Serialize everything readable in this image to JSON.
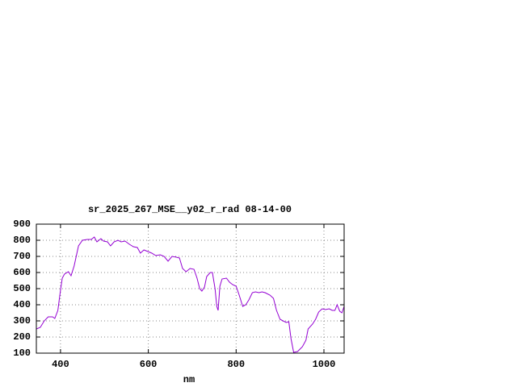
{
  "chart_data": {
    "type": "line",
    "title": "sr_2025_267_MSE__y02_r_rad 08-14-00",
    "xlabel": "nm",
    "x": [
      345,
      354,
      363,
      372,
      382,
      387,
      394,
      400,
      404,
      409,
      418,
      424,
      431,
      441,
      450,
      461,
      470,
      477,
      483,
      492,
      498,
      507,
      514,
      522,
      531,
      538,
      547,
      557,
      566,
      575,
      582,
      590,
      599,
      608,
      617,
      627,
      636,
      645,
      654,
      664,
      671,
      678,
      686,
      695,
      704,
      711,
      717,
      722,
      728,
      733,
      741,
      746,
      752,
      756,
      759,
      763,
      768,
      778,
      785,
      792,
      800,
      807,
      815,
      822,
      829,
      837,
      844,
      852,
      859,
      866,
      877,
      885,
      892,
      900,
      907,
      914,
      920,
      925,
      931,
      940,
      951,
      959,
      964,
      974,
      981,
      988,
      996,
      1003,
      1012,
      1019,
      1025,
      1030,
      1036,
      1041,
      1046
    ],
    "series": [
      {
        "color": "#9400d3",
        "values": [
          250,
          260,
          300,
          325,
          325,
          315,
          365,
          490,
          565,
          590,
          605,
          580,
          640,
          765,
          800,
          805,
          805,
          820,
          790,
          810,
          795,
          790,
          765,
          790,
          800,
          790,
          795,
          775,
          760,
          755,
          720,
          740,
          730,
          720,
          705,
          710,
          700,
          670,
          700,
          695,
          690,
          625,
          605,
          625,
          620,
          565,
          500,
          485,
          510,
          575,
          600,
          600,
          500,
          390,
          365,
          515,
          560,
          565,
          540,
          525,
          515,
          460,
          390,
          400,
          430,
          475,
          480,
          475,
          480,
          475,
          460,
          440,
          365,
          310,
          300,
          290,
          295,
          190,
          105,
          110,
          140,
          180,
          250,
          280,
          310,
          355,
          375,
          370,
          375,
          365,
          365,
          400,
          360,
          350,
          390
        ]
      }
    ],
    "xlim": [
      345,
      1046
    ],
    "ylim": [
      100,
      900
    ],
    "xticks": [
      400,
      600,
      800,
      1000
    ],
    "yticks": [
      100,
      200,
      300,
      400,
      500,
      600,
      700,
      800,
      900
    ],
    "grid": true
  }
}
